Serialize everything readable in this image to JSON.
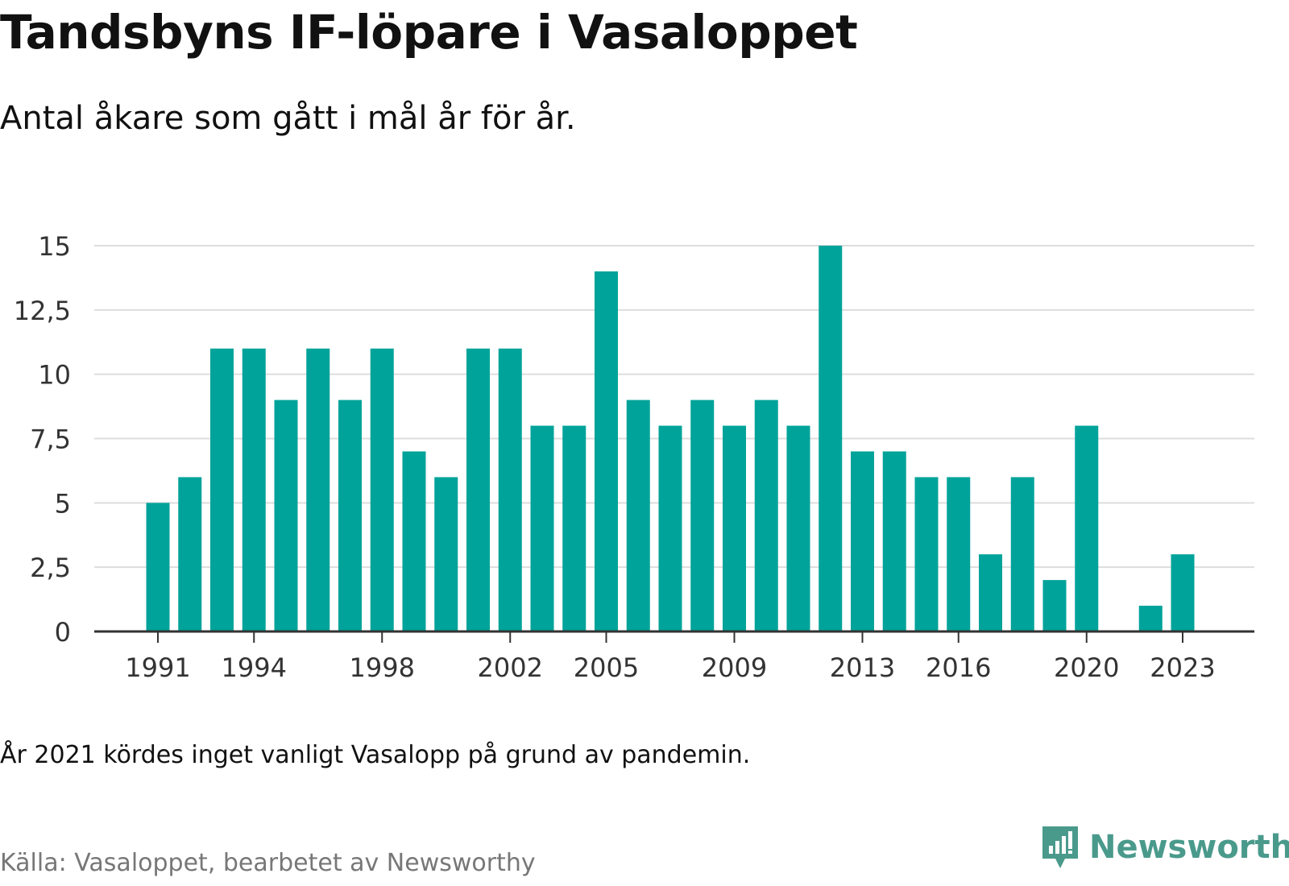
{
  "title": "Tandsbyns IF-löpare i Vasaloppet",
  "subtitle": "Antal åkare som gått i mål år för år.",
  "note": "År 2021 kördes inget vanligt Vasalopp på grund av pandemin.",
  "source": "Källa: Vasaloppet, bearbetet av Newsworthy",
  "brand": "Newsworthy",
  "colors": {
    "bar": "#00a39a",
    "grid": "#dddddd",
    "axis": "#333333",
    "brand": "#4a9a8c"
  },
  "chart_data": {
    "type": "bar",
    "x": [
      1991,
      1992,
      1993,
      1994,
      1995,
      1996,
      1997,
      1998,
      1999,
      2000,
      2001,
      2002,
      2003,
      2004,
      2005,
      2006,
      2007,
      2008,
      2009,
      2010,
      2011,
      2012,
      2013,
      2014,
      2015,
      2016,
      2017,
      2018,
      2019,
      2020,
      2021,
      2022,
      2023
    ],
    "values": [
      5,
      6,
      11,
      11,
      9,
      11,
      9,
      11,
      7,
      6,
      11,
      11,
      8,
      8,
      14,
      9,
      8,
      9,
      8,
      9,
      8,
      15,
      7,
      7,
      6,
      6,
      3,
      6,
      2,
      8,
      null,
      1,
      3
    ],
    "x_ticks": [
      "1991",
      "1994",
      "1998",
      "2002",
      "2005",
      "2009",
      "2013",
      "2016",
      "2020",
      "2023"
    ],
    "y_ticks": [
      "0",
      "2,5",
      "5",
      "7,5",
      "10",
      "12,5",
      "15"
    ],
    "y_tick_values": [
      0,
      2.5,
      5,
      7.5,
      10,
      12.5,
      15
    ],
    "ylim": [
      0,
      15
    ],
    "xlabel": "",
    "ylabel": "",
    "grid": true
  }
}
